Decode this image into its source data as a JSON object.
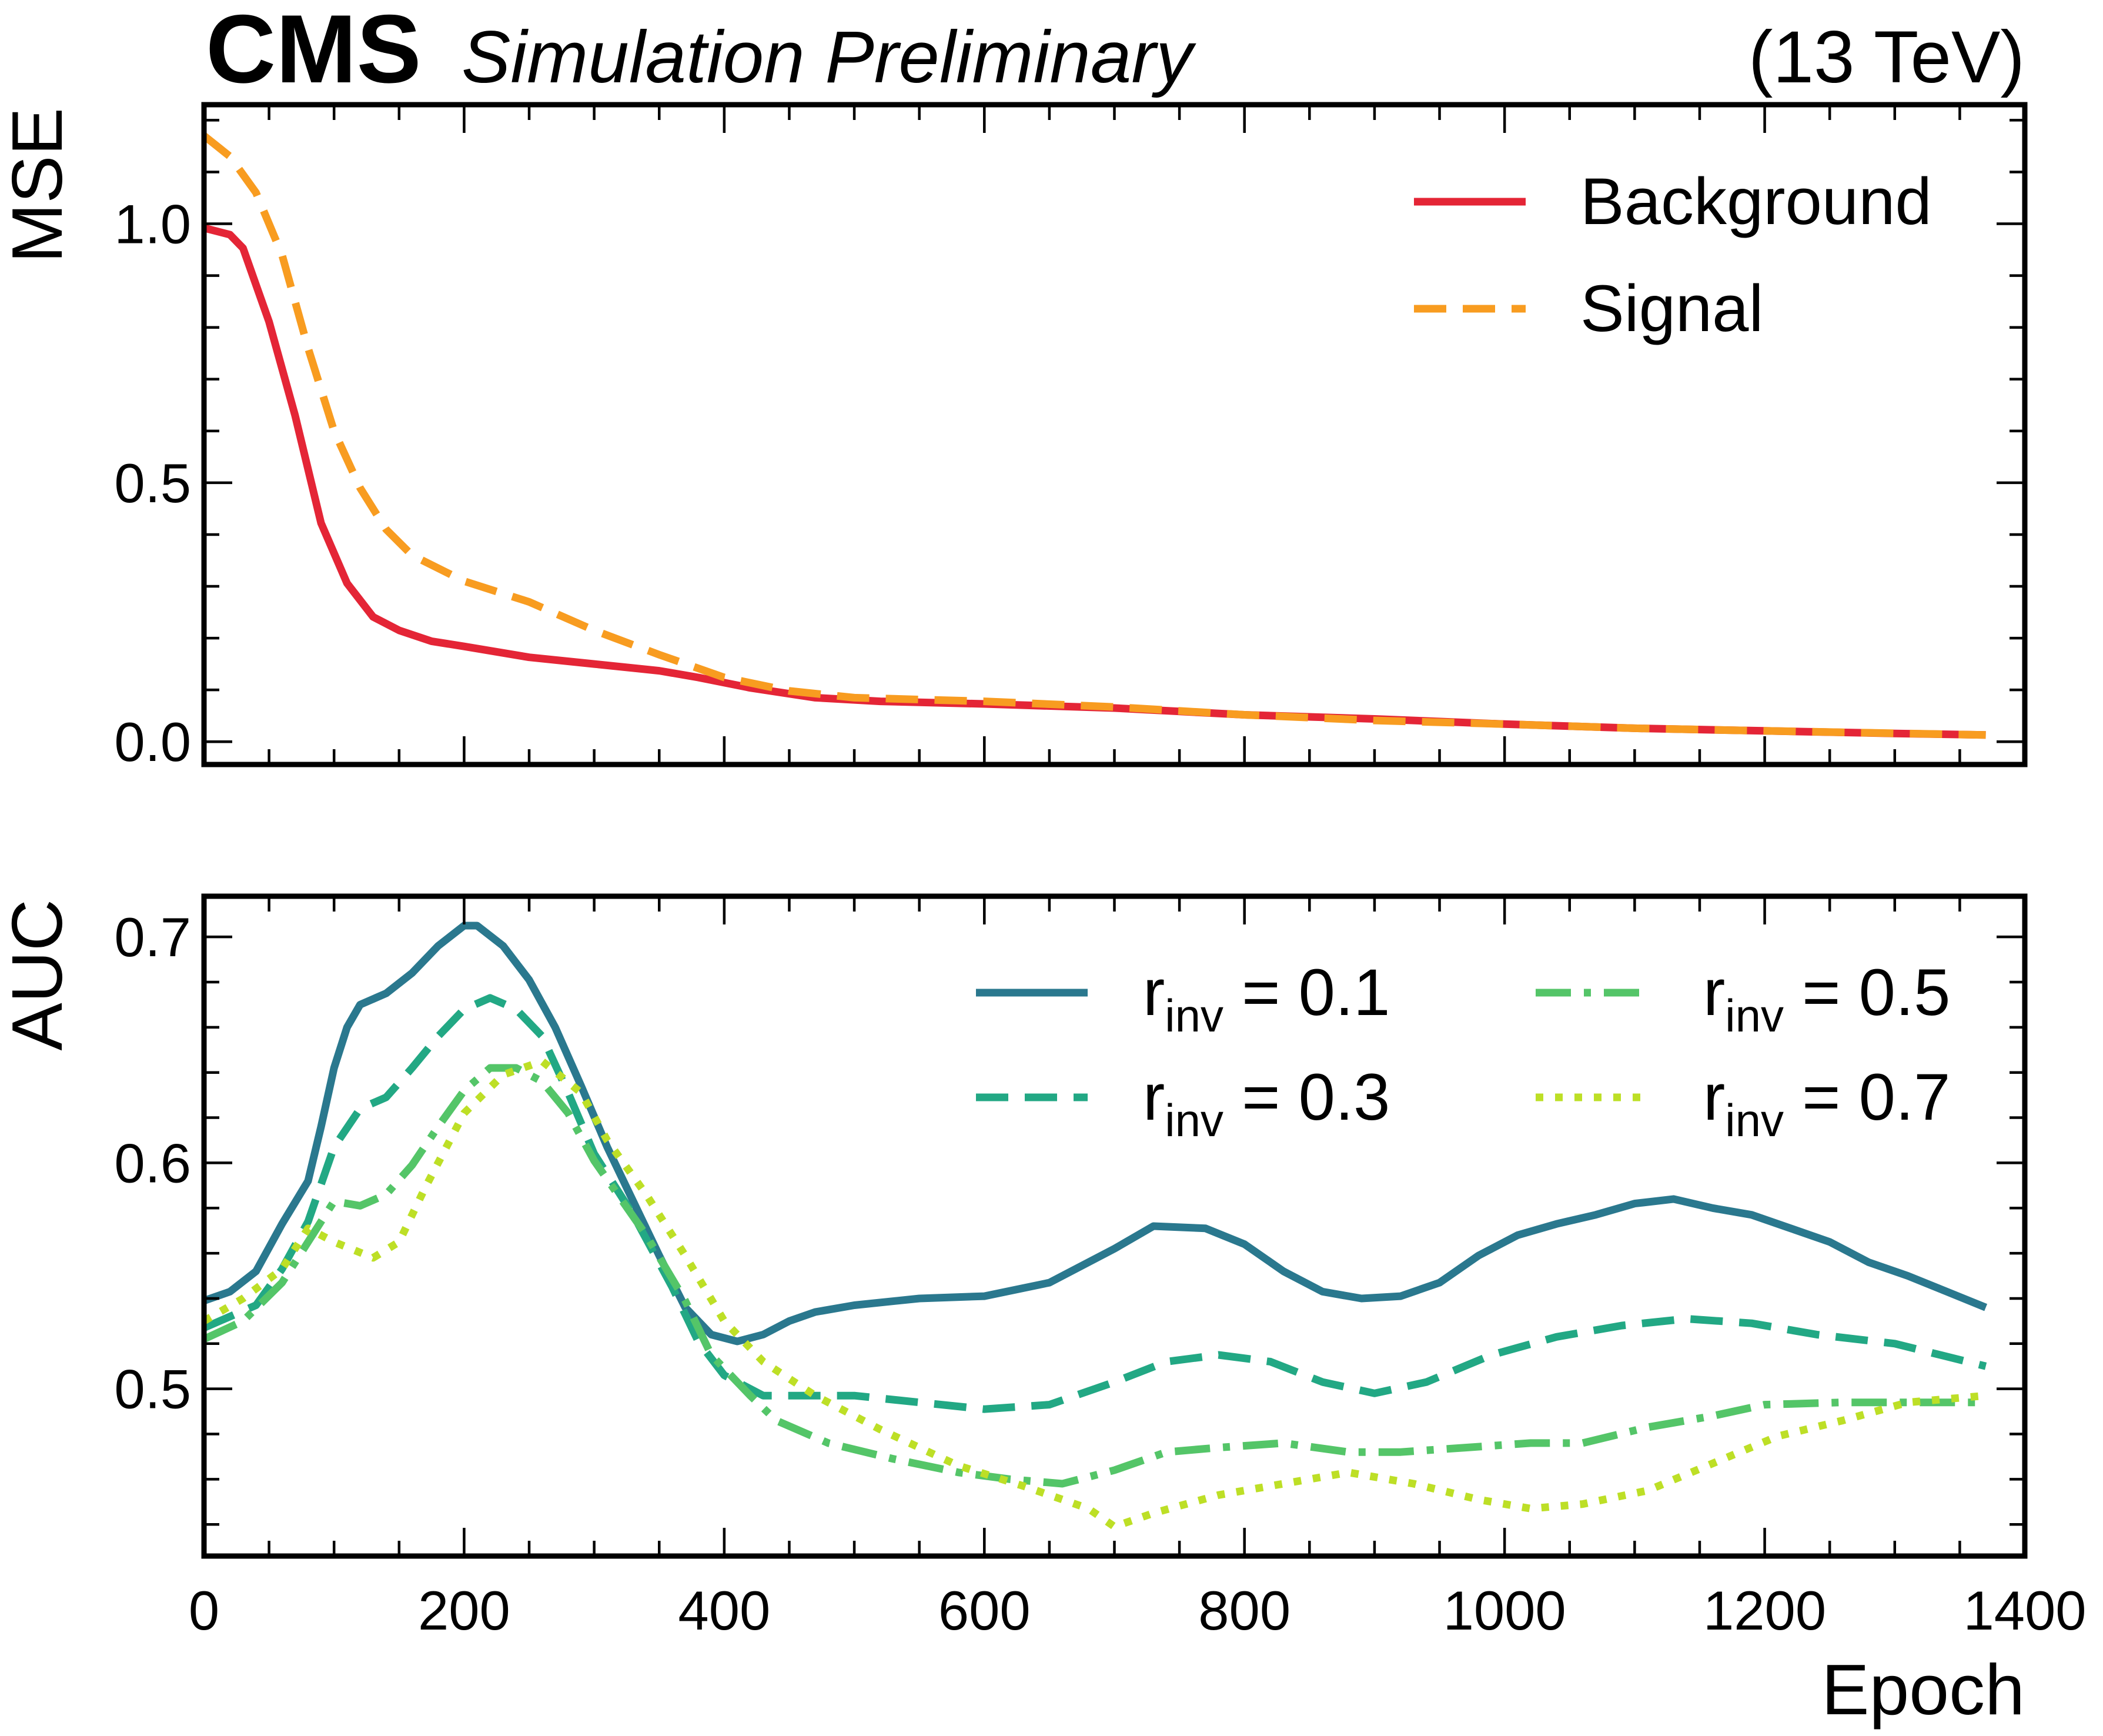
{
  "header": {
    "experiment": "CMS",
    "status": "Simulation Preliminary",
    "energy": "(13 TeV)"
  },
  "chart_data": [
    {
      "type": "line",
      "title": "",
      "xlabel": "",
      "ylabel": "MSE",
      "xlim": [
        0,
        1400
      ],
      "ylim": [
        -0.044,
        1.23
      ],
      "xticks": [
        0,
        200,
        400,
        600,
        800,
        1000,
        1200,
        1400
      ],
      "show_xtick_labels": false,
      "yticks": [
        0.0,
        0.5,
        1.0
      ],
      "ytick_labels": [
        "0.0",
        "0.5",
        "1.0"
      ],
      "grid": false,
      "legend_position": "top-right",
      "series": [
        {
          "name": "Background",
          "color": "#e42536",
          "dash": "solid",
          "x": [
            0,
            20,
            30,
            50,
            70,
            90,
            110,
            130,
            150,
            175,
            200,
            250,
            300,
            350,
            380,
            420,
            470,
            520,
            600,
            700,
            800,
            900,
            1000,
            1100,
            1200,
            1300,
            1370
          ],
          "y": [
            0.992,
            0.979,
            0.953,
            0.811,
            0.63,
            0.422,
            0.306,
            0.241,
            0.215,
            0.194,
            0.184,
            0.163,
            0.15,
            0.137,
            0.124,
            0.104,
            0.085,
            0.078,
            0.073,
            0.065,
            0.052,
            0.044,
            0.034,
            0.026,
            0.021,
            0.016,
            0.013
          ]
        },
        {
          "name": "Signal",
          "color": "#f89c20",
          "dash": "dashed",
          "x": [
            0,
            20,
            40,
            60,
            80,
            100,
            120,
            140,
            160,
            200,
            250,
            300,
            350,
            400,
            450,
            500,
            600,
            700,
            800,
            900,
            1000,
            1100,
            1200,
            1370
          ],
          "y": [
            1.17,
            1.13,
            1.06,
            0.94,
            0.76,
            0.6,
            0.49,
            0.41,
            0.36,
            0.31,
            0.27,
            0.215,
            0.168,
            0.124,
            0.098,
            0.085,
            0.078,
            0.067,
            0.052,
            0.041,
            0.034,
            0.026,
            0.021,
            0.013
          ]
        }
      ]
    },
    {
      "type": "line",
      "title": "",
      "xlabel": "Epoch",
      "ylabel": "AUC",
      "xlim": [
        0,
        1400
      ],
      "ylim": [
        0.426,
        0.718
      ],
      "xticks": [
        0,
        200,
        400,
        600,
        800,
        1000,
        1200,
        1400
      ],
      "xtick_labels": [
        "0",
        "200",
        "400",
        "600",
        "800",
        "1000",
        "1200",
        "1400"
      ],
      "yticks": [
        0.5,
        0.6,
        0.7
      ],
      "ytick_labels": [
        "0.5",
        "0.6",
        "0.7"
      ],
      "grid": false,
      "legend_position": "top-right",
      "series": [
        {
          "name": {
            "base": "r",
            "sub": "inv",
            "rest": " = 0.1"
          },
          "color": "#2a788e",
          "dash": "solid",
          "x": [
            0,
            20,
            40,
            60,
            80,
            90,
            100,
            110,
            120,
            140,
            160,
            180,
            200,
            210,
            230,
            250,
            270,
            290,
            310,
            330,
            350,
            370,
            390,
            410,
            430,
            450,
            470,
            500,
            550,
            600,
            650,
            700,
            730,
            770,
            800,
            830,
            860,
            890,
            920,
            950,
            980,
            1010,
            1040,
            1070,
            1100,
            1130,
            1160,
            1190,
            1220,
            1250,
            1280,
            1310,
            1340,
            1370
          ],
          "y": [
            0.539,
            0.543,
            0.552,
            0.573,
            0.592,
            0.616,
            0.642,
            0.66,
            0.67,
            0.675,
            0.684,
            0.696,
            0.705,
            0.705,
            0.696,
            0.681,
            0.66,
            0.634,
            0.607,
            0.583,
            0.559,
            0.536,
            0.524,
            0.521,
            0.524,
            0.53,
            0.534,
            0.537,
            0.54,
            0.541,
            0.547,
            0.562,
            0.572,
            0.571,
            0.564,
            0.552,
            0.543,
            0.54,
            0.541,
            0.547,
            0.559,
            0.568,
            0.573,
            0.577,
            0.582,
            0.584,
            0.58,
            0.577,
            0.571,
            0.565,
            0.556,
            0.55,
            0.543,
            0.536
          ]
        },
        {
          "name": {
            "base": "r",
            "sub": "inv",
            "rest": " = 0.3"
          },
          "color": "#22a884",
          "dash": "dashed",
          "x": [
            0,
            40,
            60,
            80,
            100,
            120,
            140,
            160,
            180,
            200,
            220,
            240,
            260,
            280,
            300,
            330,
            360,
            380,
            400,
            430,
            500,
            550,
            600,
            650,
            700,
            740,
            780,
            820,
            860,
            900,
            940,
            990,
            1040,
            1090,
            1140,
            1190,
            1240,
            1300,
            1370
          ],
          "y": [
            0.527,
            0.537,
            0.553,
            0.574,
            0.607,
            0.624,
            0.629,
            0.642,
            0.656,
            0.668,
            0.673,
            0.668,
            0.656,
            0.631,
            0.604,
            0.577,
            0.545,
            0.521,
            0.506,
            0.497,
            0.497,
            0.494,
            0.491,
            0.493,
            0.503,
            0.512,
            0.515,
            0.512,
            0.503,
            0.498,
            0.503,
            0.515,
            0.523,
            0.528,
            0.531,
            0.529,
            0.524,
            0.52,
            0.51
          ]
        },
        {
          "name": {
            "base": "r",
            "sub": "inv",
            "rest": " = 0.5"
          },
          "color": "#54c568",
          "dash": "dashdot",
          "x": [
            0,
            30,
            60,
            80,
            100,
            120,
            140,
            160,
            180,
            200,
            220,
            240,
            260,
            280,
            300,
            340,
            370,
            390,
            420,
            440,
            480,
            530,
            580,
            620,
            660,
            700,
            740,
            780,
            830,
            880,
            920,
            970,
            1020,
            1060,
            1110,
            1160,
            1200,
            1260,
            1310,
            1370
          ],
          "y": [
            0.522,
            0.53,
            0.547,
            0.565,
            0.583,
            0.581,
            0.586,
            0.599,
            0.616,
            0.632,
            0.642,
            0.642,
            0.636,
            0.622,
            0.601,
            0.568,
            0.539,
            0.515,
            0.497,
            0.486,
            0.476,
            0.469,
            0.463,
            0.46,
            0.458,
            0.464,
            0.472,
            0.474,
            0.476,
            0.472,
            0.472,
            0.474,
            0.476,
            0.476,
            0.483,
            0.488,
            0.493,
            0.494,
            0.494,
            0.494
          ]
        },
        {
          "name": {
            "base": "r",
            "sub": "inv",
            "rest": " = 0.7"
          },
          "color": "#bddf26",
          "dash": "dotted",
          "x": [
            0,
            30,
            60,
            80,
            100,
            130,
            150,
            170,
            200,
            230,
            260,
            290,
            310,
            340,
            370,
            400,
            430,
            470,
            520,
            580,
            630,
            680,
            700,
            730,
            780,
            830,
            880,
            930,
            980,
            1020,
            1060,
            1110,
            1160,
            1210,
            1260,
            1310,
            1370
          ],
          "y": [
            0.53,
            0.54,
            0.553,
            0.571,
            0.565,
            0.558,
            0.565,
            0.589,
            0.622,
            0.639,
            0.645,
            0.631,
            0.61,
            0.586,
            0.559,
            0.53,
            0.512,
            0.497,
            0.482,
            0.466,
            0.457,
            0.447,
            0.439,
            0.445,
            0.453,
            0.458,
            0.463,
            0.458,
            0.451,
            0.447,
            0.449,
            0.455,
            0.467,
            0.479,
            0.486,
            0.494,
            0.497
          ]
        }
      ]
    }
  ]
}
